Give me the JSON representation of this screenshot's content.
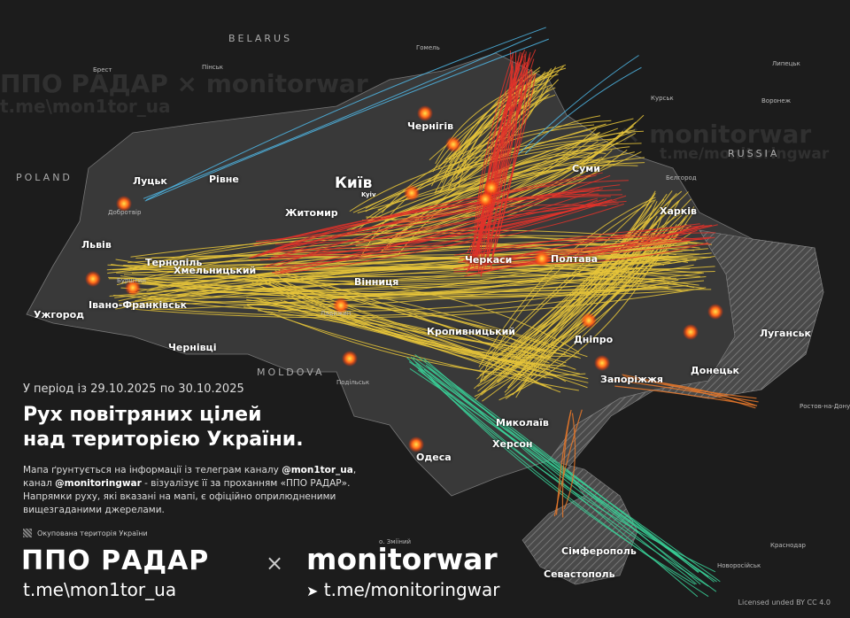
{
  "header": {
    "period": "У період із 29.10.2025 по 30.10.2025",
    "title_line1": "Рух повітряних цілей",
    "title_line2": "над територією України."
  },
  "description": {
    "p1": "Мапа ґрунтується на інформації із телеграм каналу ",
    "handle1": "@mon1tor_ua",
    "p2": ", канал ",
    "handle2": "@monitoringwar",
    "p3": " - візуалізує її за проханням «ППО РАДАР». Напрямки руху, які вказані на мапі, є офіційно оприлюдненими вищезгаданими джерелами."
  },
  "legend": {
    "occupied": "Окупована територія України"
  },
  "branding": {
    "radar": "ППО РАДАР",
    "times": "×",
    "monitorwar": "monitorwar",
    "link_radar": "t.me\\mon1tor_ua",
    "link_monitorwar": "t.me/monitoringwar",
    "license": "Licensed unded BY CC 4.0",
    "watermark_radar": "ППО РАДАР × monitorwar",
    "watermark_radar_link": "t.me\\mon1tor_ua",
    "watermark_mw": "× monitorwar",
    "watermark_mw_link": "t.me/monitoringwar"
  },
  "countries": [
    "BELARUS",
    "POLAND",
    "RUSSIA",
    "MOLDOVA"
  ],
  "cities": {
    "kyiv": "Київ",
    "kyiv_en": "Kyiv",
    "zhytomyr": "Житомир",
    "chernihiv": "Чернігів",
    "sumy": "Суми",
    "kharkiv": "Харків",
    "poltava": "Полтава",
    "cherkasy": "Черкаси",
    "kropyvnytskyi": "Кропивницький",
    "dnipro": "Дніпро",
    "zaporizhzhia": "Запоріжжя",
    "donetsk": "Донецьк",
    "luhansk": "Луганськ",
    "mykolaiv": "Миколаїв",
    "kherson": "Херсон",
    "odesa": "Одеса",
    "simferopol": "Сімферополь",
    "sevastopol": "Севастополь",
    "vinnytsia": "Вінниця",
    "khmelnytskyi": "Хмельницький",
    "ternopil": "Тернопіль",
    "lviv": "Львів",
    "lutsk": "Луцьк",
    "rivne": "Рівне",
    "ivano_frankivsk": "Івано-Франківськ",
    "uzhhorod": "Ужгород",
    "chernivtsi": "Чернівці"
  },
  "towns": {
    "brest": "Брест",
    "pinsk": "Пінськ",
    "homel": "Гомель",
    "kursk": "Курськ",
    "voronezh": "Воронеж",
    "lipetsk": "Липецьк",
    "belgorod": "Бєлгород",
    "rostov": "Ростов-на-Дону",
    "krasnodar": "Краснодар",
    "novorossiysk": "Новоросійськ",
    "burshtyn": "Бурштин",
    "dobrotvir": "Добротвір",
    "ladyzhyn": "Ладижин",
    "zmiinyi": "о. Зміїний",
    "podilsk": "Подільськ"
  },
  "colors": {
    "background": "#1c1c1c",
    "ukraine": "#3b3b3b",
    "occupied": "#555555",
    "drone_paths": "#e8c53a",
    "missile_paths": "#e0322a",
    "ballistic_paths": "#3ad49a",
    "kalibr_paths": "#e8782a",
    "aviation_paths": "#4fb8e8",
    "explosion": "#ff6a1a"
  }
}
